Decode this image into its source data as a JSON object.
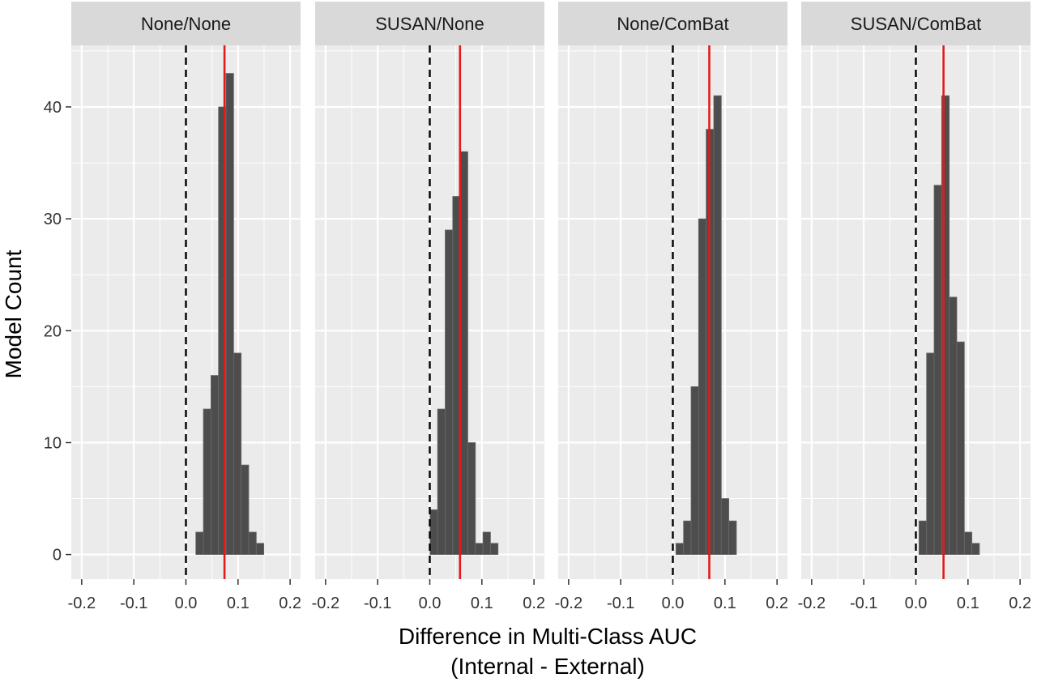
{
  "chart_data": {
    "type": "histogram",
    "xlabel": "Difference in Multi-Class AUC",
    "xlabel_line2": "(Internal - External)",
    "ylabel": "Model Count",
    "xlim": [
      -0.22,
      0.22
    ],
    "ylim": [
      -2.2,
      45.5
    ],
    "x_ticks": [
      -0.2,
      -0.1,
      0.0,
      0.1,
      0.2
    ],
    "x_tick_labels": [
      "-0.2",
      "-0.1",
      "0.0",
      "0.1",
      "0.2"
    ],
    "y_ticks": [
      0,
      10,
      20,
      30,
      40
    ],
    "y_tick_labels": [
      "0",
      "10",
      "20",
      "30",
      "40"
    ],
    "bin_width": 0.0145,
    "grid": true,
    "colors": {
      "panel_background": "#ebebeb",
      "strip_background": "#d9d9d9",
      "grid": "#ffffff",
      "bar_fill": "#4d4d4d",
      "bar_outline": "#6a6a6a",
      "mean_line": "#e31a1c",
      "zero_line": "#000000"
    },
    "reference_line": {
      "x": 0.0,
      "style": "dashed"
    },
    "panels": [
      {
        "label": "None/None",
        "mean_line_x": 0.074,
        "bin_start": 0.019,
        "counts": [
          2,
          13,
          16,
          40,
          43,
          18,
          8,
          2,
          1
        ]
      },
      {
        "label": "SUSAN/None",
        "mean_line_x": 0.058,
        "bin_start": 0.0005,
        "counts": [
          4,
          13,
          29,
          32,
          36,
          10,
          1,
          2,
          1
        ]
      },
      {
        "label": "None/ComBat",
        "mean_line_x": 0.07,
        "bin_start": 0.006,
        "counts": [
          1,
          3,
          15,
          30,
          38,
          41,
          5,
          3
        ]
      },
      {
        "label": "SUSAN/ComBat",
        "mean_line_x": 0.053,
        "bin_start": 0.006,
        "counts": [
          3,
          18,
          33,
          41,
          23,
          19,
          2,
          1
        ]
      }
    ]
  }
}
